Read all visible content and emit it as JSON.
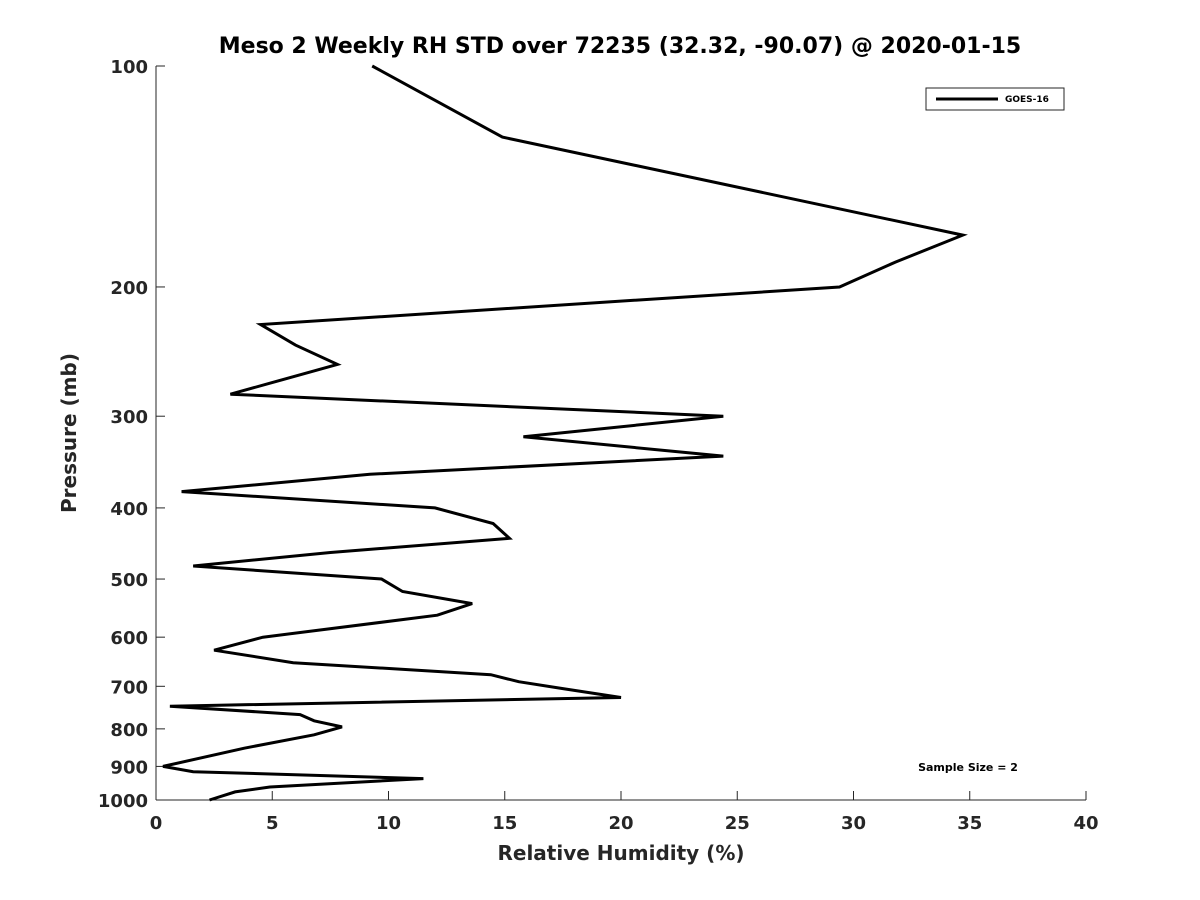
{
  "chart_data": {
    "type": "line",
    "title": "Meso 2 Weekly RH STD over 72235 (32.32, -90.07) @ 2020-01-15",
    "xlabel": "Relative Humidity (%)",
    "ylabel": "Pressure (mb)",
    "xlim": [
      0,
      40
    ],
    "ylim": [
      100,
      1000
    ],
    "yscale": "log",
    "y_reversed": true,
    "grid": false,
    "legend_position": "top-right",
    "x_ticks": [
      "0",
      "5",
      "10",
      "15",
      "20",
      "25",
      "30",
      "35",
      "40"
    ],
    "y_ticks": [
      "100",
      "200",
      "300",
      "400",
      "500",
      "600",
      "700",
      "800",
      "900",
      "1000"
    ],
    "annotation": "Sample Size = 2",
    "series": [
      {
        "name": "GOES-16",
        "color": "#000000",
        "points": [
          [
            9.3,
            100
          ],
          [
            14.9,
            125
          ],
          [
            34.7,
            170
          ],
          [
            31.8,
            185
          ],
          [
            29.4,
            200
          ],
          [
            4.5,
            225
          ],
          [
            6.0,
            240
          ],
          [
            7.8,
            255
          ],
          [
            3.2,
            280
          ],
          [
            24.4,
            300
          ],
          [
            15.8,
            320
          ],
          [
            24.4,
            340
          ],
          [
            9.2,
            360
          ],
          [
            1.1,
            380
          ],
          [
            12.0,
            400
          ],
          [
            14.5,
            420
          ],
          [
            15.2,
            440
          ],
          [
            7.5,
            460
          ],
          [
            1.6,
            480
          ],
          [
            9.7,
            500
          ],
          [
            10.6,
            520
          ],
          [
            13.6,
            540
          ],
          [
            12.1,
            560
          ],
          [
            4.6,
            600
          ],
          [
            2.5,
            625
          ],
          [
            5.9,
            650
          ],
          [
            14.4,
            675
          ],
          [
            15.6,
            690
          ],
          [
            17.5,
            705
          ],
          [
            20.0,
            725
          ],
          [
            0.6,
            745
          ],
          [
            6.2,
            765
          ],
          [
            6.8,
            780
          ],
          [
            8.0,
            795
          ],
          [
            6.8,
            815
          ],
          [
            3.8,
            850
          ],
          [
            0.3,
            900
          ],
          [
            1.6,
            915
          ],
          [
            11.5,
            935
          ],
          [
            4.9,
            960
          ],
          [
            3.4,
            975
          ],
          [
            2.3,
            1000
          ]
        ]
      }
    ]
  }
}
